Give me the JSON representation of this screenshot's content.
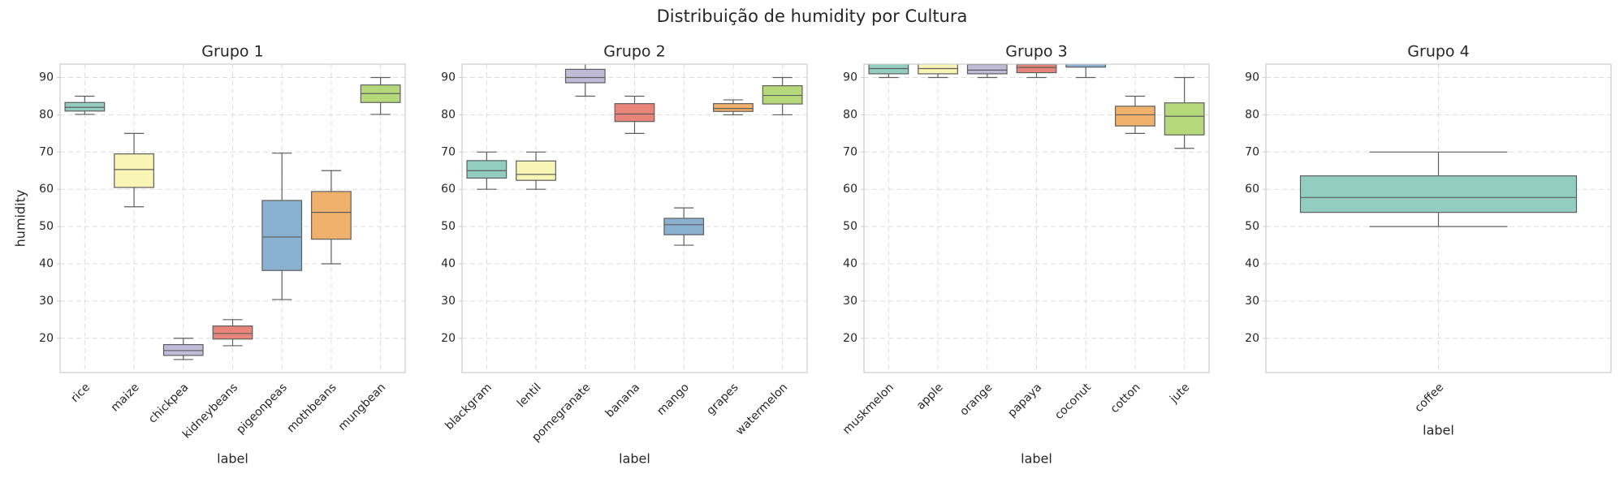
{
  "title": "Distribuição de humidity por Cultura",
  "chart_data": [
    {
      "type": "box",
      "title": "Grupo 1",
      "xlabel": "label",
      "ylabel": "humidity",
      "categories": [
        "rice",
        "maize",
        "chickpea",
        "kidneybeans",
        "pigeonpeas",
        "mothbeans",
        "mungbean"
      ],
      "colors": [
        "#93cdc2",
        "#f8f5b5",
        "#c0bcd8",
        "#e8847a",
        "#8ab1cf",
        "#f0b16d",
        "#b5d97a"
      ],
      "boxes": [
        {
          "whislo": 80.1,
          "q1": 81,
          "med": 82,
          "q3": 83.3,
          "whishi": 85
        },
        {
          "whislo": 55.3,
          "q1": 60.5,
          "med": 65.3,
          "q3": 69.5,
          "whishi": 75
        },
        {
          "whislo": 14.3,
          "q1": 15.4,
          "med": 16.7,
          "q3": 18.3,
          "whishi": 20
        },
        {
          "whislo": 18,
          "q1": 19.8,
          "med": 21.3,
          "q3": 23.3,
          "whishi": 25
        },
        {
          "whislo": 30.4,
          "q1": 38.2,
          "med": 47.2,
          "q3": 57,
          "whishi": 69.7
        },
        {
          "whislo": 40,
          "q1": 46.6,
          "med": 53.8,
          "q3": 59.4,
          "whishi": 65
        },
        {
          "whislo": 80.1,
          "q1": 83.3,
          "med": 85.7,
          "q3": 88,
          "whishi": 90
        }
      ],
      "ylim": [
        10.8,
        93.6
      ],
      "yticks": [
        20,
        30,
        40,
        50,
        60,
        70,
        80,
        90
      ],
      "grid": true
    },
    {
      "type": "box",
      "title": "Grupo 2",
      "xlabel": "label",
      "categories": [
        "blackgram",
        "lentil",
        "pomegranate",
        "banana",
        "mango",
        "grapes",
        "watermelon"
      ],
      "colors": [
        "#93cdc2",
        "#f8f5b5",
        "#c0bcd8",
        "#e8847a",
        "#8ab1cf",
        "#f0b16d",
        "#b5d97a"
      ],
      "boxes": [
        {
          "whislo": 60,
          "q1": 63,
          "med": 65,
          "q3": 67.7,
          "whishi": 70
        },
        {
          "whislo": 60,
          "q1": 62.4,
          "med": 64,
          "q3": 67.6,
          "whishi": 70
        },
        {
          "whislo": 85,
          "q1": 88.6,
          "med": 90,
          "q3": 92.2,
          "whishi": 95
        },
        {
          "whislo": 75,
          "q1": 78.2,
          "med": 80.2,
          "q3": 83,
          "whishi": 85
        },
        {
          "whislo": 45,
          "q1": 47.8,
          "med": 50.5,
          "q3": 52.2,
          "whishi": 55
        },
        {
          "whislo": 80,
          "q1": 80.9,
          "med": 81.7,
          "q3": 83,
          "whishi": 84
        },
        {
          "whislo": 80,
          "q1": 82.9,
          "med": 85.2,
          "q3": 87.8,
          "whishi": 90
        }
      ],
      "ylim": [
        10.8,
        93.6
      ],
      "yticks": [
        20,
        30,
        40,
        50,
        60,
        70,
        80,
        90
      ],
      "grid": true
    },
    {
      "type": "box",
      "title": "Grupo 3",
      "xlabel": "label",
      "categories": [
        "muskmelon",
        "apple",
        "orange",
        "papaya",
        "coconut",
        "cotton",
        "jute"
      ],
      "colors": [
        "#93cdc2",
        "#f8f5b5",
        "#c0bcd8",
        "#e8847a",
        "#8ab1cf",
        "#f0b16d",
        "#b5d97a"
      ],
      "boxes": [
        {
          "whislo": 90,
          "q1": 91,
          "med": 92.4,
          "q3": 94.3,
          "whishi": 95
        },
        {
          "whislo": 90,
          "q1": 91,
          "med": 92.4,
          "q3": 93.8,
          "whishi": 95
        },
        {
          "whislo": 90,
          "q1": 91,
          "med": 92,
          "q3": 93.5,
          "whishi": 95
        },
        {
          "whislo": 90,
          "q1": 91.3,
          "med": 92.7,
          "q3": 93.5,
          "whishi": 95
        },
        {
          "whislo": 90,
          "q1": 92.8,
          "med": 94.5,
          "q3": 96,
          "whishi": 100
        },
        {
          "whislo": 75,
          "q1": 77,
          "med": 80,
          "q3": 82.3,
          "whishi": 85
        },
        {
          "whislo": 71,
          "q1": 74.6,
          "med": 79.6,
          "q3": 83.2,
          "whishi": 90
        }
      ],
      "ylim": [
        10.8,
        93.6
      ],
      "yticks": [
        20,
        30,
        40,
        50,
        60,
        70,
        80,
        90
      ],
      "grid": true
    },
    {
      "type": "box",
      "title": "Grupo 4",
      "xlabel": "label",
      "categories": [
        "coffee"
      ],
      "colors": [
        "#93cdc2"
      ],
      "boxes": [
        {
          "whislo": 50,
          "q1": 53.8,
          "med": 57.8,
          "q3": 63.6,
          "whishi": 70
        }
      ],
      "ylim": [
        10.8,
        93.6
      ],
      "yticks": [
        20,
        30,
        40,
        50,
        60,
        70,
        80,
        90
      ],
      "grid": true
    }
  ]
}
